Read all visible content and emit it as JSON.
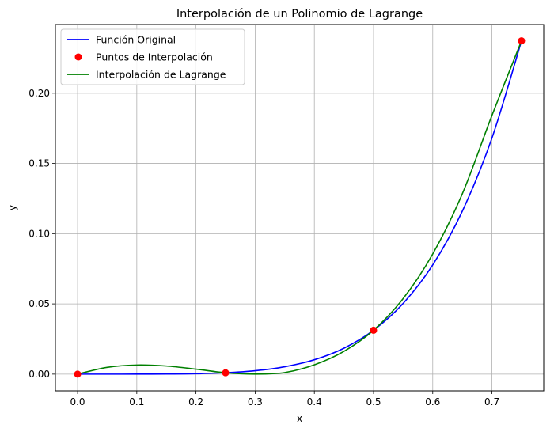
{
  "chart_data": {
    "type": "line",
    "title": "Interpolación de un Polinomio de Lagrange",
    "xlabel": "x",
    "ylabel": "y",
    "xlim": [
      -0.0375,
      0.7875
    ],
    "ylim": [
      -0.0119,
      0.2489
    ],
    "xticks": [
      0.0,
      0.1,
      0.2,
      0.3,
      0.4,
      0.5,
      0.6,
      0.7
    ],
    "xtick_labels": [
      "0.0",
      "0.1",
      "0.2",
      "0.3",
      "0.4",
      "0.5",
      "0.6",
      "0.7"
    ],
    "yticks": [
      0.0,
      0.05,
      0.1,
      0.15,
      0.2
    ],
    "ytick_labels": [
      "0.00",
      "0.05",
      "0.10",
      "0.15",
      "0.20"
    ],
    "grid": true,
    "legend_position": "top-left",
    "colors": {
      "original": "#0000ff",
      "points": "#ff0000",
      "lagrange": "#008000",
      "grid": "#b0b0b0"
    },
    "series": [
      {
        "name": "Función Original",
        "kind": "line",
        "color": "#0000ff",
        "x": [
          0.0,
          0.05,
          0.1,
          0.15,
          0.2,
          0.25,
          0.3,
          0.35,
          0.4,
          0.45,
          0.5,
          0.55,
          0.6,
          0.65,
          0.7,
          0.75
        ],
        "y": [
          0.0,
          3e-07,
          1e-05,
          8e-05,
          0.00032,
          0.00098,
          0.00243,
          0.00525,
          0.01024,
          0.01845,
          0.03125,
          0.05033,
          0.07776,
          0.11603,
          0.16807,
          0.2373
        ]
      },
      {
        "name": "Puntos de Interpolación",
        "kind": "scatter",
        "color": "#ff0000",
        "x": [
          0.0,
          0.25,
          0.5,
          0.75
        ],
        "y": [
          0.0,
          0.00098,
          0.03125,
          0.2373
        ]
      },
      {
        "name": "Interpolación de Lagrange",
        "kind": "line",
        "color": "#008000",
        "x": [
          0.0,
          0.05,
          0.1,
          0.15,
          0.2,
          0.25,
          0.3,
          0.35,
          0.4,
          0.45,
          0.5,
          0.55,
          0.6,
          0.65,
          0.7,
          0.75
        ],
        "y": [
          0.0,
          0.00484,
          0.00648,
          0.00577,
          0.00356,
          0.00098,
          1e-05,
          0.00112,
          0.00663,
          0.01622,
          0.03125,
          0.05378,
          0.08555,
          0.12839,
          0.18415,
          0.2373
        ]
      }
    ]
  }
}
